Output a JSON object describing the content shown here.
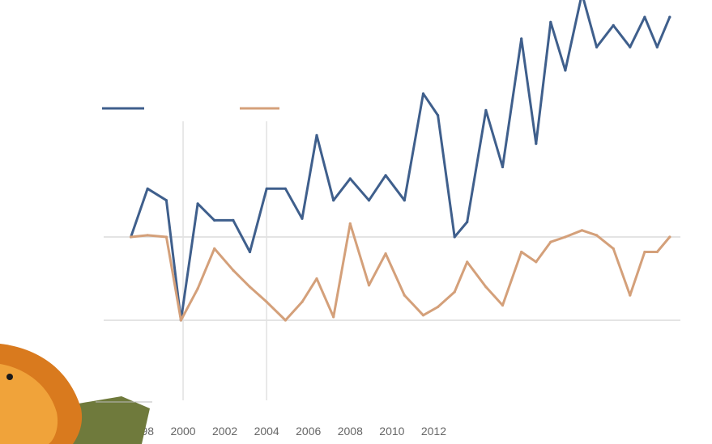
{
  "chart_data": {
    "type": "line",
    "title": "",
    "xlabel": "",
    "ylabel": "",
    "x": [
      1997.5,
      1998.3,
      1999.2,
      1999.9,
      2000.7,
      2001.5,
      2002.4,
      2003.2,
      2004.0,
      2004.9,
      2005.7,
      2006.4,
      2007.2,
      2008.0,
      2008.9,
      2009.7,
      2010.6,
      2011.5,
      2012.2,
      2013.0,
      2013.6,
      2014.5,
      2015.3,
      2016.2,
      2016.9,
      2017.6,
      2018.3,
      2019.1,
      2019.8,
      2020.6,
      2021.4,
      2022.1,
      2022.7,
      2023.3
    ],
    "series": [
      {
        "name": "",
        "color": "#3f5f8c",
        "values": [
          1.0,
          1.58,
          1.44,
          0.0,
          1.4,
          1.2,
          1.2,
          0.82,
          1.58,
          1.58,
          1.22,
          2.22,
          1.44,
          1.7,
          1.44,
          1.74,
          1.44,
          2.72,
          2.46,
          1.0,
          1.18,
          2.52,
          1.84,
          3.38,
          2.12,
          3.58,
          3.0,
          3.92,
          3.28,
          3.54,
          3.28,
          3.64,
          3.28,
          3.64
        ]
      },
      {
        "name": "",
        "color": "#d4a07a",
        "values": [
          1.0,
          1.02,
          1.0,
          0.0,
          0.38,
          0.86,
          0.6,
          0.4,
          0.22,
          0.0,
          0.22,
          0.5,
          0.04,
          1.16,
          0.42,
          0.8,
          0.3,
          0.06,
          0.16,
          0.34,
          0.7,
          0.4,
          0.18,
          0.82,
          0.7,
          0.94,
          1.0,
          1.08,
          1.02,
          0.86,
          0.3,
          0.82,
          0.82,
          1.0
        ]
      }
    ],
    "xlim": [
      1995.5,
      2024.2
    ],
    "ylim": [
      0,
      4
    ],
    "xticks": [
      1998,
      2000,
      2002,
      2004,
      2006,
      2008,
      2010,
      2012
    ],
    "xtick_labels": [
      "1998",
      "2000",
      "2002",
      "2004",
      "2006",
      "2008",
      "2010",
      "2012"
    ],
    "yticks": [
      0,
      1,
      2,
      3,
      4
    ],
    "ytick_labels": [
      "",
      "",
      "",
      "",
      ""
    ],
    "hlines": [
      0,
      1
    ],
    "vlines": [
      2000,
      2004
    ],
    "grid": false,
    "legend_position": "top-left"
  },
  "logo": {
    "caption": ""
  }
}
